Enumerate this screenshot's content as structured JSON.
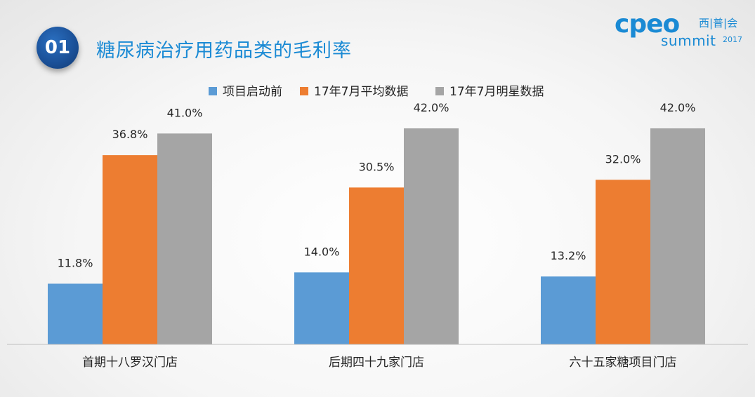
{
  "header": {
    "badge": "01",
    "title": "糖尿病治疗用药品类的毛利率"
  },
  "logo": {
    "brand": "cpeo",
    "chinese": "西|普|会",
    "summit": "summit",
    "year": "2017"
  },
  "colors": {
    "series": [
      "#5b9bd5",
      "#ed7d31",
      "#a5a5a5"
    ],
    "title": "#1a8ad4",
    "badge": "#1a4f96"
  },
  "chart_data": {
    "type": "bar",
    "categories": [
      "首期十八罗汉门店",
      "后期四十九家门店",
      "六十五家糖项目门店"
    ],
    "series": [
      {
        "name": "项目启动前",
        "values": [
          11.8,
          14.0,
          13.2
        ],
        "labels": [
          "11.8%",
          "14.0%",
          "13.2%"
        ]
      },
      {
        "name": "17年7月平均数据",
        "values": [
          36.8,
          30.5,
          32.0
        ],
        "labels": [
          "36.8%",
          "30.5%",
          "32.0%"
        ]
      },
      {
        "name": "17年7月明星数据",
        "values": [
          41.0,
          42.0,
          42.0
        ],
        "labels": [
          "41.0%",
          "42.0%",
          "42.0%"
        ]
      }
    ],
    "unit": "%",
    "ylim": [
      0,
      45
    ],
    "grid": false,
    "legend": "top-center"
  }
}
